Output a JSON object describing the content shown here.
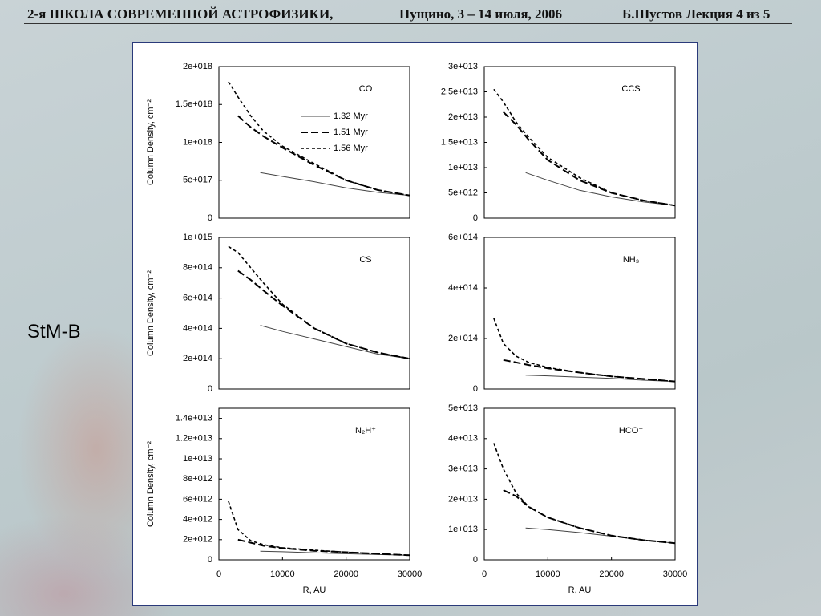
{
  "header": {
    "school": "2-я ШКОЛА СОВРЕМЕННОЙ АСТРОФИЗИКИ,",
    "place": "Пущино, 3 – 14 июля, 2006",
    "lecture": "Б.Шустов Лекция 4 из 5"
  },
  "side_label": "StM-B",
  "chart_data": [
    {
      "type": "line",
      "title": "CO",
      "ylabel": "Column Density, cm⁻²",
      "xlim": [
        0,
        30000
      ],
      "ylim": [
        0,
        2e+18
      ],
      "yticks": [
        0,
        {
          "value": 5e+17,
          "label": "5e+017"
        },
        {
          "value": 1e+18,
          "label": "1e+018"
        },
        {
          "value": 1.5e+18,
          "label": "1.5e+018"
        },
        {
          "value": 2e+18,
          "label": "2e+018"
        }
      ],
      "legend": "upper-right",
      "series": [
        {
          "name": "1.32 Myr",
          "color": "#444",
          "dash": "solid",
          "x": [
            6500,
            10000,
            15000,
            20000,
            25000,
            30000
          ],
          "values": [
            6e+17,
            5.5e+17,
            4.8e+17,
            4e+17,
            3.4e+17,
            3e+17
          ]
        },
        {
          "name": "1.51 Myr",
          "color": "#000",
          "dash": "long",
          "x": [
            3000,
            5000,
            7000,
            10000,
            15000,
            20000,
            25000,
            30000
          ],
          "values": [
            1.35e+18,
            1.2e+18,
            1.08e+18,
            9.3e+17,
            7e+17,
            5e+17,
            3.7e+17,
            3e+17
          ]
        },
        {
          "name": "1.56 Myr",
          "color": "#000",
          "dash": "short",
          "x": [
            1500,
            3000,
            5000,
            7000,
            10000,
            15000,
            20000,
            25000,
            30000
          ],
          "values": [
            1.8e+18,
            1.6e+18,
            1.35e+18,
            1.15e+18,
            9.5e+17,
            7.2e+17,
            5e+17,
            3.7e+17,
            3e+17
          ]
        }
      ]
    },
    {
      "type": "line",
      "title": "CCS",
      "xlim": [
        0,
        30000
      ],
      "ylim": [
        0,
        30000000000000.0
      ],
      "yticks": [
        0,
        {
          "value": 5000000000000.0,
          "label": "5e+012"
        },
        {
          "value": 10000000000000.0,
          "label": "1e+013"
        },
        {
          "value": 15000000000000.0,
          "label": "1.5e+013"
        },
        {
          "value": 20000000000000.0,
          "label": "2e+013"
        },
        {
          "value": 25000000000000.0,
          "label": "2.5e+013"
        },
        {
          "value": 30000000000000.0,
          "label": "3e+013"
        }
      ],
      "series": [
        {
          "color": "#444",
          "dash": "solid",
          "x": [
            6500,
            10000,
            15000,
            20000,
            25000,
            30000
          ],
          "values": [
            9000000000000.0,
            7500000000000.0,
            5500000000000.0,
            4200000000000.0,
            3200000000000.0,
            2500000000000.0
          ]
        },
        {
          "color": "#000",
          "dash": "long",
          "x": [
            3000,
            5000,
            7000,
            10000,
            15000,
            20000,
            25000,
            30000
          ],
          "values": [
            21000000000000.0,
            18500000000000.0,
            15500000000000.0,
            11500000000000.0,
            7500000000000.0,
            5000000000000.0,
            3500000000000.0,
            2500000000000.0
          ]
        },
        {
          "color": "#000",
          "dash": "short",
          "x": [
            1500,
            3000,
            5000,
            7000,
            10000,
            15000,
            20000,
            25000,
            30000
          ],
          "values": [
            25500000000000.0,
            23000000000000.0,
            19000000000000.0,
            16000000000000.0,
            12000000000000.0,
            8000000000000.0,
            5000000000000.0,
            3500000000000.0,
            2500000000000.0
          ]
        }
      ]
    },
    {
      "type": "line",
      "title": "CS",
      "ylabel": "Column Density, cm⁻²",
      "xlim": [
        0,
        30000
      ],
      "ylim": [
        0,
        1000000000000000.0
      ],
      "yticks": [
        0,
        {
          "value": 200000000000000.0,
          "label": "2e+014"
        },
        {
          "value": 400000000000000.0,
          "label": "4e+014"
        },
        {
          "value": 600000000000000.0,
          "label": "6e+014"
        },
        {
          "value": 800000000000000.0,
          "label": "8e+014"
        },
        {
          "value": 1000000000000000.0,
          "label": "1e+015"
        }
      ],
      "series": [
        {
          "color": "#444",
          "dash": "solid",
          "x": [
            6500,
            10000,
            15000,
            20000,
            25000,
            30000
          ],
          "values": [
            420000000000000.0,
            380000000000000.0,
            330000000000000.0,
            280000000000000.0,
            230000000000000.0,
            200000000000000.0
          ]
        },
        {
          "color": "#000",
          "dash": "long",
          "x": [
            3000,
            5000,
            7000,
            10000,
            15000,
            20000,
            25000,
            30000
          ],
          "values": [
            780000000000000.0,
            720000000000000.0,
            650000000000000.0,
            550000000000000.0,
            400000000000000.0,
            300000000000000.0,
            240000000000000.0,
            200000000000000.0
          ]
        },
        {
          "color": "#000",
          "dash": "short",
          "x": [
            1500,
            3000,
            5000,
            7000,
            10000,
            15000,
            20000,
            25000,
            30000
          ],
          "values": [
            940000000000000.0,
            900000000000000.0,
            800000000000000.0,
            700000000000000.0,
            560000000000000.0,
            400000000000000.0,
            300000000000000.0,
            240000000000000.0,
            200000000000000.0
          ]
        }
      ]
    },
    {
      "type": "line",
      "title": "NH₃",
      "xlim": [
        0,
        30000
      ],
      "ylim": [
        0,
        600000000000000.0
      ],
      "yticks": [
        0,
        {
          "value": 200000000000000.0,
          "label": "2e+014"
        },
        {
          "value": 400000000000000.0,
          "label": "4e+014"
        },
        {
          "value": 600000000000000.0,
          "label": "6e+014"
        }
      ],
      "series": [
        {
          "color": "#444",
          "dash": "solid",
          "x": [
            6500,
            10000,
            15000,
            20000,
            25000,
            30000
          ],
          "values": [
            55000000000000.0,
            52000000000000.0,
            47000000000000.0,
            42000000000000.0,
            35000000000000.0,
            30000000000000.0
          ]
        },
        {
          "color": "#000",
          "dash": "long",
          "x": [
            3000,
            5000,
            7000,
            10000,
            15000,
            20000,
            25000,
            30000
          ],
          "values": [
            115000000000000.0,
            105000000000000.0,
            95000000000000.0,
            82000000000000.0,
            65000000000000.0,
            50000000000000.0,
            40000000000000.0,
            30000000000000.0
          ]
        },
        {
          "color": "#000",
          "dash": "short",
          "x": [
            1500,
            3000,
            5000,
            7000,
            10000,
            15000,
            20000,
            25000,
            30000
          ],
          "values": [
            280000000000000.0,
            180000000000000.0,
            130000000000000.0,
            105000000000000.0,
            85000000000000.0,
            65000000000000.0,
            50000000000000.0,
            40000000000000.0,
            30000000000000.0
          ]
        }
      ]
    },
    {
      "type": "line",
      "title": "N₂H⁺",
      "ylabel": "Column Density, cm⁻²",
      "xlabel": "R, AU",
      "xlim": [
        0,
        30000
      ],
      "ylim": [
        0,
        15000000000000.0
      ],
      "xticks": [
        0,
        10000,
        20000,
        30000
      ],
      "yticks": [
        0,
        {
          "value": 2000000000000.0,
          "label": "2e+012"
        },
        {
          "value": 4000000000000.0,
          "label": "4e+012"
        },
        {
          "value": 6000000000000.0,
          "label": "6e+012"
        },
        {
          "value": 8000000000000.0,
          "label": "8e+012"
        },
        {
          "value": 10000000000000.0,
          "label": "1e+013"
        },
        {
          "value": 12000000000000.0,
          "label": "1.2e+013"
        },
        {
          "value": 14000000000000.0,
          "label": "1.4e+013"
        }
      ],
      "series": [
        {
          "color": "#444",
          "dash": "solid",
          "x": [
            6500,
            10000,
            15000,
            20000,
            25000,
            30000
          ],
          "values": [
            850000000000.0,
            800000000000.0,
            700000000000.0,
            600000000000.0,
            520000000000.0,
            450000000000.0
          ]
        },
        {
          "color": "#000",
          "dash": "long",
          "x": [
            3000,
            5000,
            7000,
            10000,
            15000,
            20000,
            25000,
            30000
          ],
          "values": [
            2000000000000.0,
            1700000000000.0,
            1400000000000.0,
            1150000000000.0,
            900000000000.0,
            750000000000.0,
            600000000000.0,
            450000000000.0
          ]
        },
        {
          "color": "#000",
          "dash": "short",
          "x": [
            1500,
            3000,
            5000,
            7000,
            10000,
            15000,
            20000,
            25000,
            30000
          ],
          "values": [
            5800000000000.0,
            3000000000000.0,
            1900000000000.0,
            1500000000000.0,
            1200000000000.0,
            950000000000.0,
            750000000000.0,
            600000000000.0,
            450000000000.0
          ]
        }
      ]
    },
    {
      "type": "line",
      "title": "HCO⁺",
      "xlabel": "R, AU",
      "xlim": [
        0,
        30000
      ],
      "ylim": [
        0,
        50000000000000.0
      ],
      "xticks": [
        0,
        10000,
        20000,
        30000
      ],
      "yticks": [
        0,
        {
          "value": 10000000000000.0,
          "label": "1e+013"
        },
        {
          "value": 20000000000000.0,
          "label": "2e+013"
        },
        {
          "value": 30000000000000.0,
          "label": "3e+013"
        },
        {
          "value": 40000000000000.0,
          "label": "4e+013"
        },
        {
          "value": 50000000000000.0,
          "label": "5e+013"
        }
      ],
      "series": [
        {
          "color": "#444",
          "dash": "solid",
          "x": [
            6500,
            10000,
            15000,
            20000,
            25000,
            30000
          ],
          "values": [
            10500000000000.0,
            10000000000000.0,
            9000000000000.0,
            7800000000000.0,
            6500000000000.0,
            5500000000000.0
          ]
        },
        {
          "color": "#000",
          "dash": "long",
          "x": [
            3000,
            5000,
            7000,
            10000,
            15000,
            20000,
            25000,
            30000
          ],
          "values": [
            23000000000000.0,
            21000000000000.0,
            17500000000000.0,
            14000000000000.0,
            10500000000000.0,
            8000000000000.0,
            6500000000000.0,
            5500000000000.0
          ]
        },
        {
          "color": "#000",
          "dash": "short",
          "x": [
            1500,
            3000,
            5000,
            7000,
            10000,
            15000,
            20000,
            25000,
            30000
          ],
          "values": [
            38500000000000.0,
            30000000000000.0,
            22000000000000.0,
            17500000000000.0,
            14000000000000.0,
            10500000000000.0,
            8000000000000.0,
            6500000000000.0,
            5500000000000.0
          ]
        }
      ]
    }
  ]
}
